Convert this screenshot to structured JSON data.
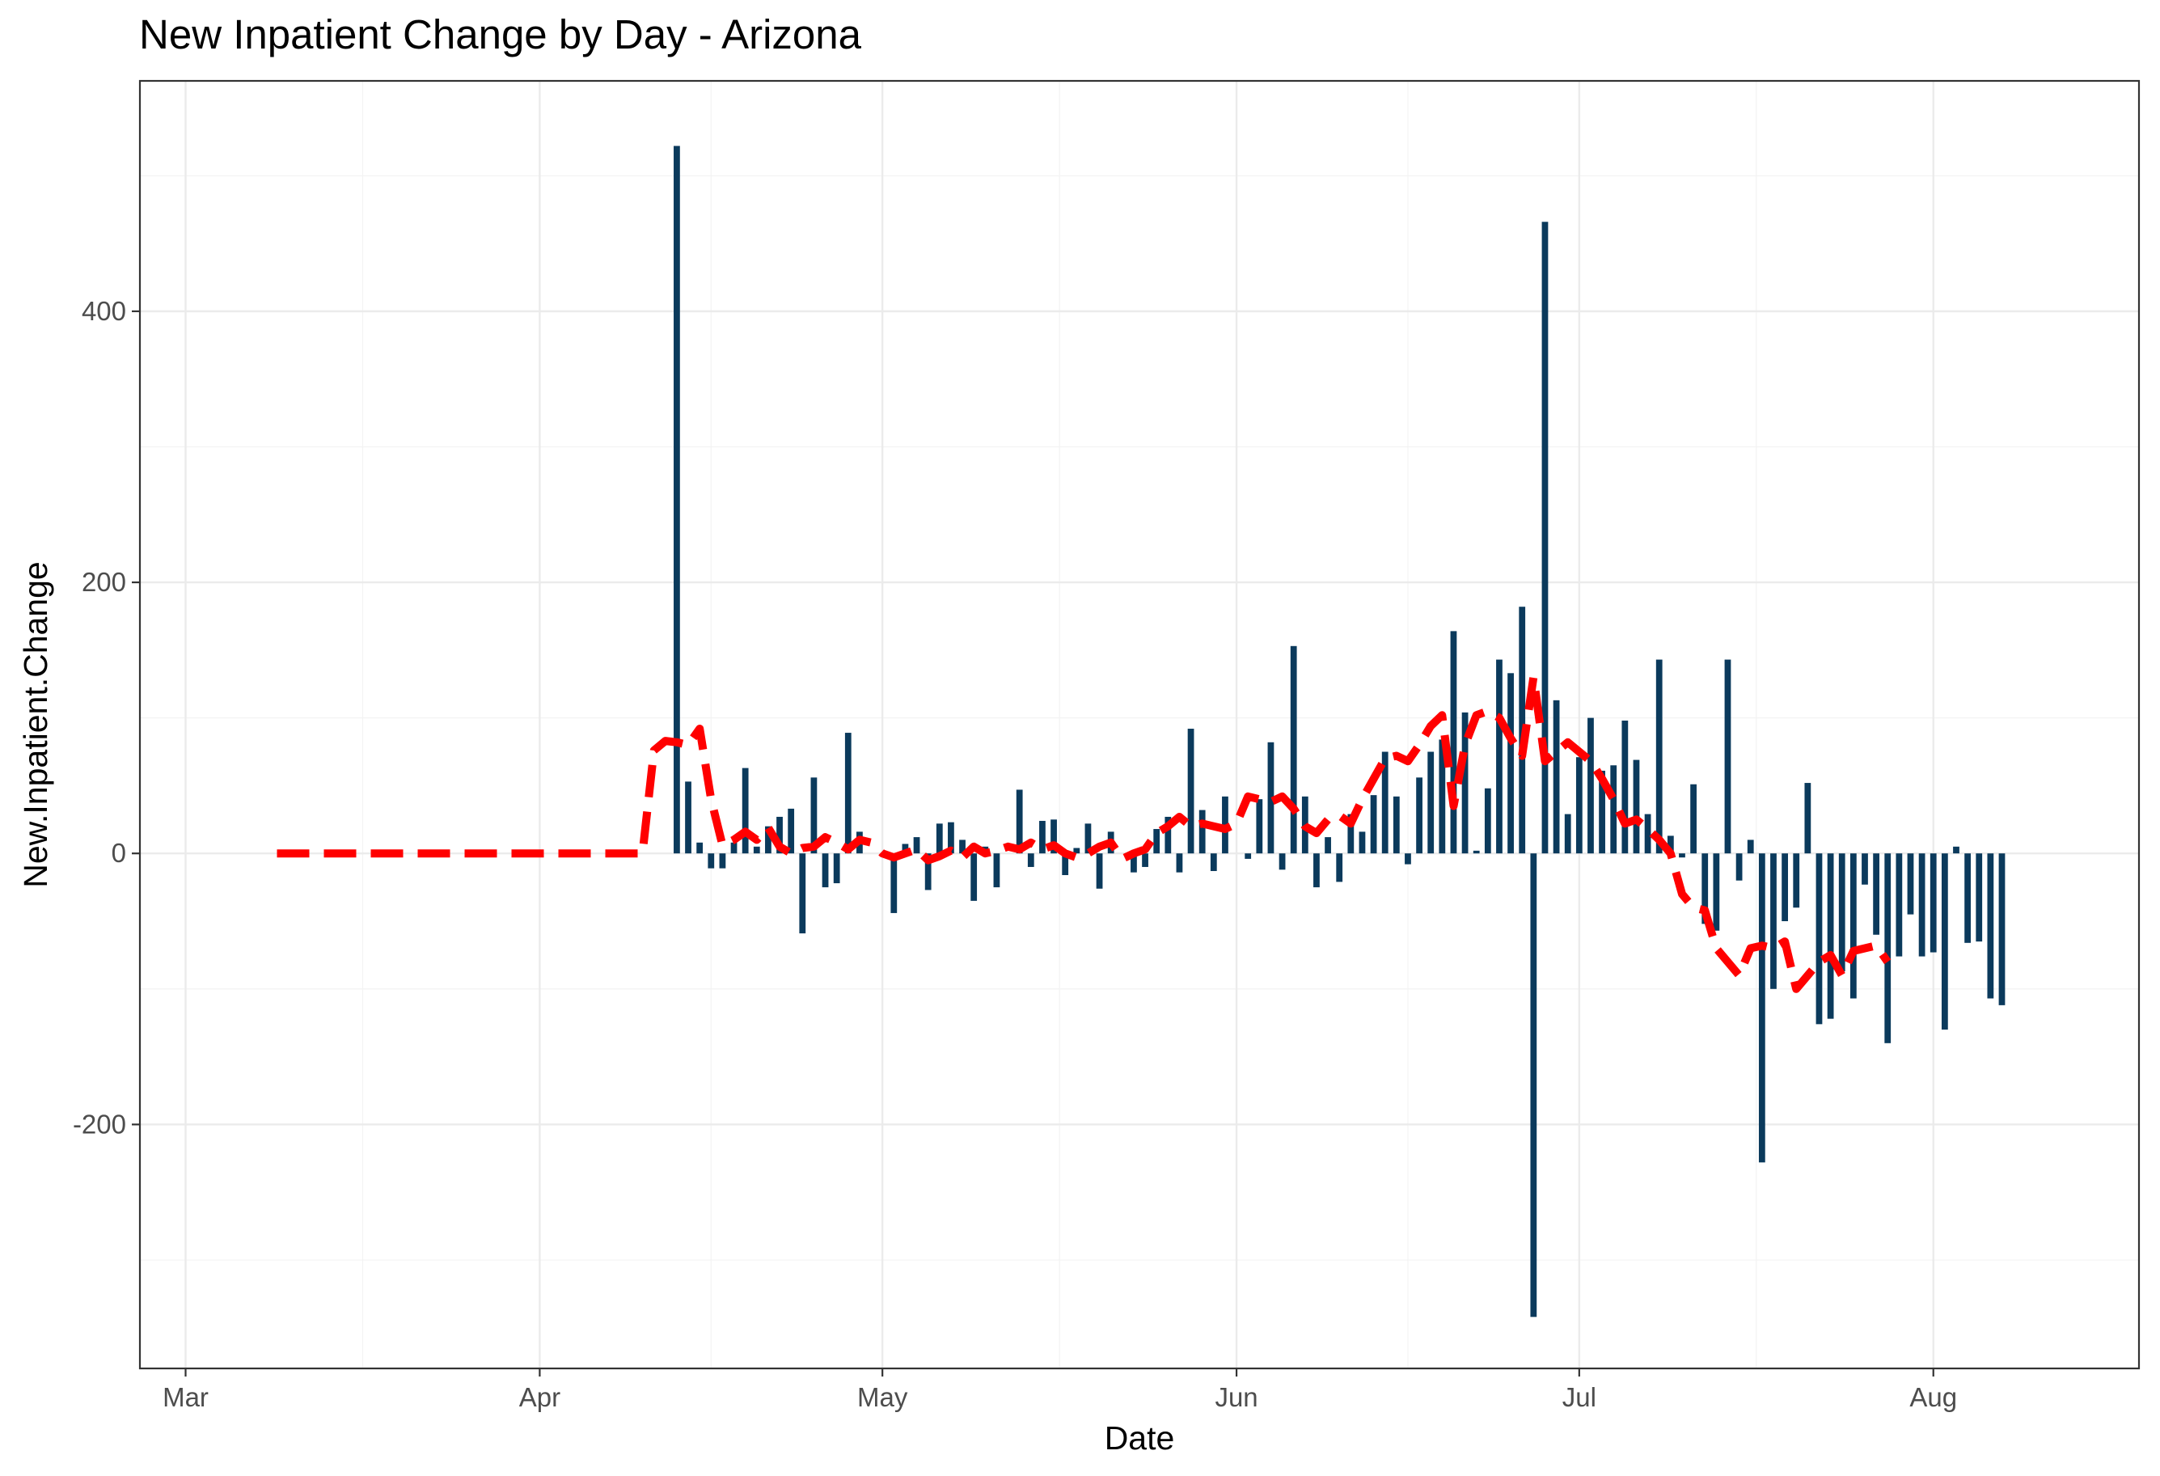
{
  "chart_data": {
    "type": "bar",
    "title": "New Inpatient Change by Day - Arizona",
    "xlabel": "Date",
    "ylabel": "New.Inpatient.Change",
    "xlim": [
      "2020-02-26",
      "2020-08-19"
    ],
    "ylim": [
      -380,
      570
    ],
    "x_ticks": [
      {
        "date": "2020-03-01",
        "label": "Mar"
      },
      {
        "date": "2020-04-01",
        "label": "Apr"
      },
      {
        "date": "2020-05-01",
        "label": "May"
      },
      {
        "date": "2020-06-01",
        "label": "Jun"
      },
      {
        "date": "2020-07-01",
        "label": "Jul"
      },
      {
        "date": "2020-08-01",
        "label": "Aug"
      }
    ],
    "y_ticks": [
      {
        "value": -200,
        "label": "-200"
      },
      {
        "value": 0,
        "label": "0"
      },
      {
        "value": 200,
        "label": "200"
      },
      {
        "value": 400,
        "label": "400"
      }
    ],
    "grid": true,
    "legend": "none",
    "colors": {
      "bars": "#0b3a5c",
      "trend": "#ff0000",
      "grid": "#ebebeb",
      "panel_border": "#333333"
    },
    "series": [
      {
        "type": "bar",
        "start_date": "2020-03-09",
        "values": [
          0,
          0,
          0,
          0,
          0,
          0,
          0,
          0,
          0,
          0,
          0,
          0,
          0,
          0,
          0,
          0,
          0,
          0,
          0,
          0,
          0,
          0,
          0,
          0,
          0,
          0,
          0,
          0,
          0,
          0,
          0,
          0,
          0,
          0,
          0,
          522,
          53,
          8,
          -11,
          -11,
          8,
          63,
          5,
          20,
          27,
          33,
          -59,
          56,
          -25,
          -22,
          89,
          16,
          0,
          0,
          -44,
          7,
          12,
          -27,
          22,
          23,
          10,
          -35,
          5,
          -25,
          0,
          47,
          -10,
          24,
          25,
          -16,
          4,
          22,
          -26,
          16,
          0,
          -14,
          -10,
          18,
          27,
          -14,
          92,
          32,
          -13,
          42,
          0,
          -4,
          40,
          82,
          -12,
          153,
          42,
          -25,
          12,
          -21,
          29,
          16,
          43,
          75,
          42,
          -8,
          56,
          75,
          84,
          164,
          104,
          2,
          48,
          143,
          133,
          182,
          -342,
          466,
          113,
          29,
          71,
          100,
          61,
          65,
          98,
          69,
          29,
          143,
          13,
          -3,
          51,
          -52,
          -57,
          143,
          -20,
          10,
          -228,
          -100,
          -50,
          -40,
          52,
          -126,
          -122,
          -87,
          -107,
          -23,
          -60,
          -140,
          -76,
          -45,
          -76,
          -73,
          -130,
          5,
          -66,
          -65,
          -107,
          -112
        ]
      },
      {
        "type": "line",
        "style": "dashed",
        "start_date": "2020-03-09",
        "values": [
          0,
          0,
          0,
          0,
          0,
          0,
          0,
          0,
          0,
          0,
          0,
          0,
          0,
          0,
          0,
          0,
          0,
          0,
          0,
          0,
          0,
          0,
          0,
          0,
          0,
          0,
          0,
          0,
          0,
          0,
          0,
          0,
          0,
          76,
          83,
          82,
          80,
          92,
          40,
          6,
          10,
          16,
          10,
          19,
          5,
          0,
          4,
          5,
          12,
          8,
          3,
          10,
          8,
          0,
          -3,
          0,
          3,
          -5,
          -2,
          2,
          -3,
          5,
          0,
          2,
          5,
          3,
          8,
          3,
          6,
          0,
          -3,
          0,
          5,
          8,
          -4,
          0,
          3,
          15,
          20,
          27,
          20,
          22,
          20,
          18,
          22,
          42,
          40,
          38,
          42,
          33,
          20,
          15,
          25,
          28,
          22,
          40,
          55,
          70,
          72,
          68,
          80,
          94,
          102,
          35,
          80,
          102,
          105,
          100,
          85,
          72,
          130,
          68,
          75,
          82,
          75,
          68,
          55,
          40,
          22,
          25,
          18,
          10,
          0,
          -30,
          -40,
          -42,
          -70,
          -80,
          -90,
          -70,
          -68,
          -70,
          -65,
          -100,
          -90,
          -80,
          -75,
          -90,
          -72,
          -70,
          -68,
          -80
        ]
      }
    ]
  }
}
